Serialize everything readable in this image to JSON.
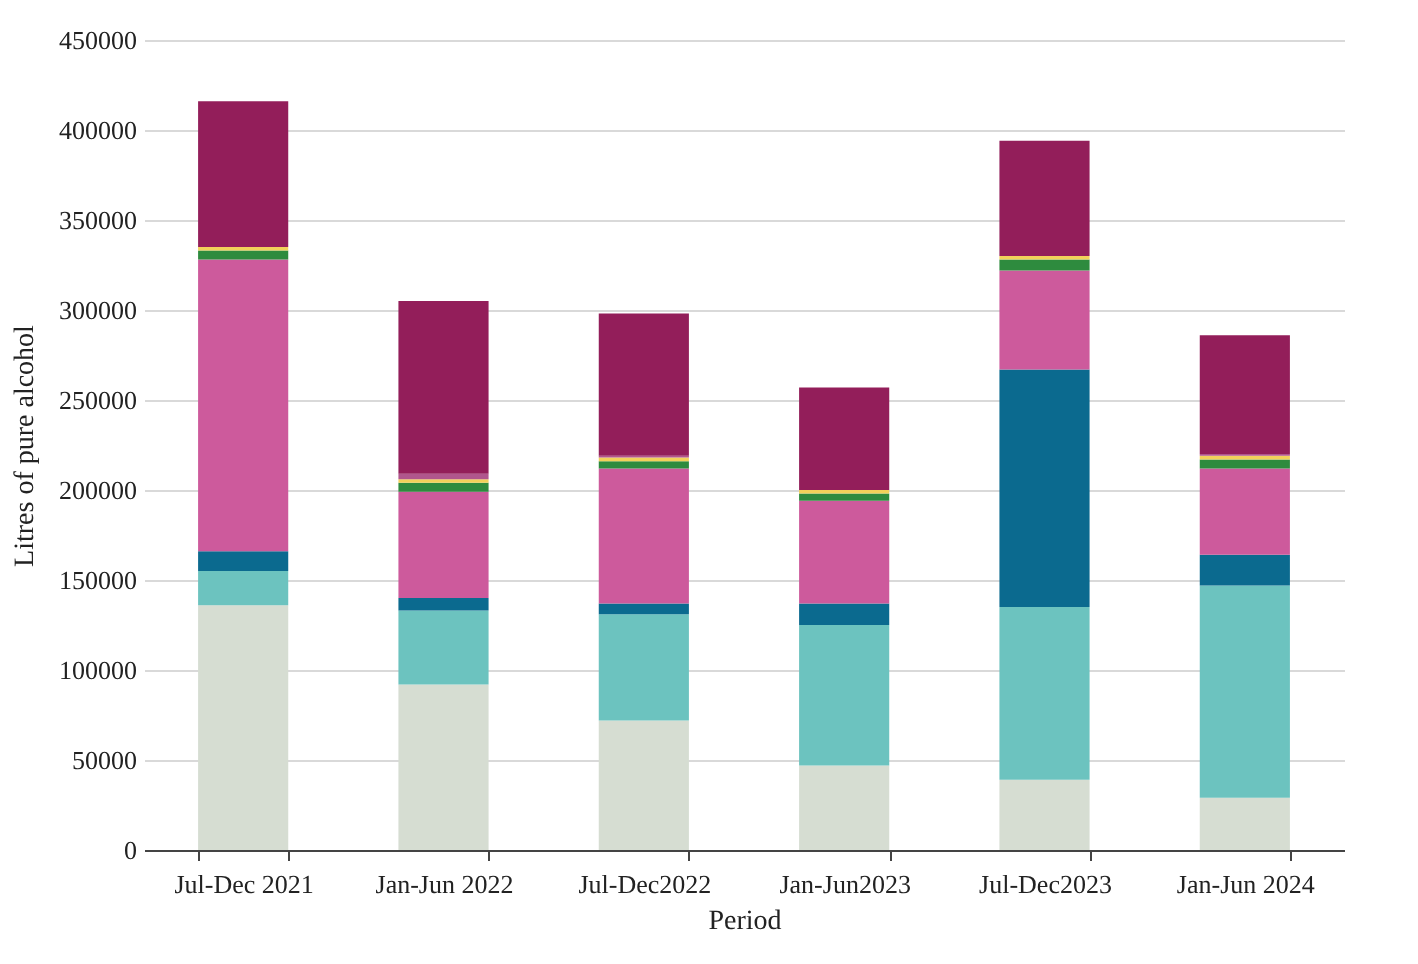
{
  "chart_data": {
    "type": "bar",
    "stacked": true,
    "xlabel": "Period",
    "ylabel": "Litres of pure alcohol",
    "categories": [
      "Jul-Dec 2021",
      "Jan-Jun 2022",
      "Jul-Dec2022",
      "Jan-Jun2023",
      "Jul-Dec2023",
      "Jan-Jun 2024"
    ],
    "series": [
      {
        "color": "#d6ddd2",
        "values": [
          136000,
          92000,
          72000,
          47000,
          39000,
          29000
        ]
      },
      {
        "color": "#6cc3bf",
        "values": [
          19000,
          41000,
          59000,
          78000,
          96000,
          118000
        ]
      },
      {
        "color": "#0b6a8f",
        "values": [
          11000,
          7000,
          6000,
          12000,
          132000,
          17000
        ]
      },
      {
        "color": "#cd5a9c",
        "values": [
          162000,
          59000,
          75000,
          57000,
          55000,
          48000
        ]
      },
      {
        "color": "#2e8b3e",
        "values": [
          5000,
          5000,
          4000,
          4000,
          6000,
          5000
        ]
      },
      {
        "color": "#f2d15a",
        "values": [
          2000,
          2000,
          2000,
          2000,
          2000,
          2000
        ]
      },
      {
        "color": "#b0568d",
        "values": [
          0,
          3000,
          1000,
          0,
          0,
          1000
        ]
      },
      {
        "color": "#931e5a",
        "values": [
          81000,
          96000,
          79000,
          57000,
          64000,
          66000
        ]
      }
    ],
    "ylim": [
      0,
      450000
    ],
    "yticks": [
      0,
      50000,
      100000,
      150000,
      200000,
      250000,
      300000,
      350000,
      400000,
      450000
    ],
    "grid": "y"
  }
}
